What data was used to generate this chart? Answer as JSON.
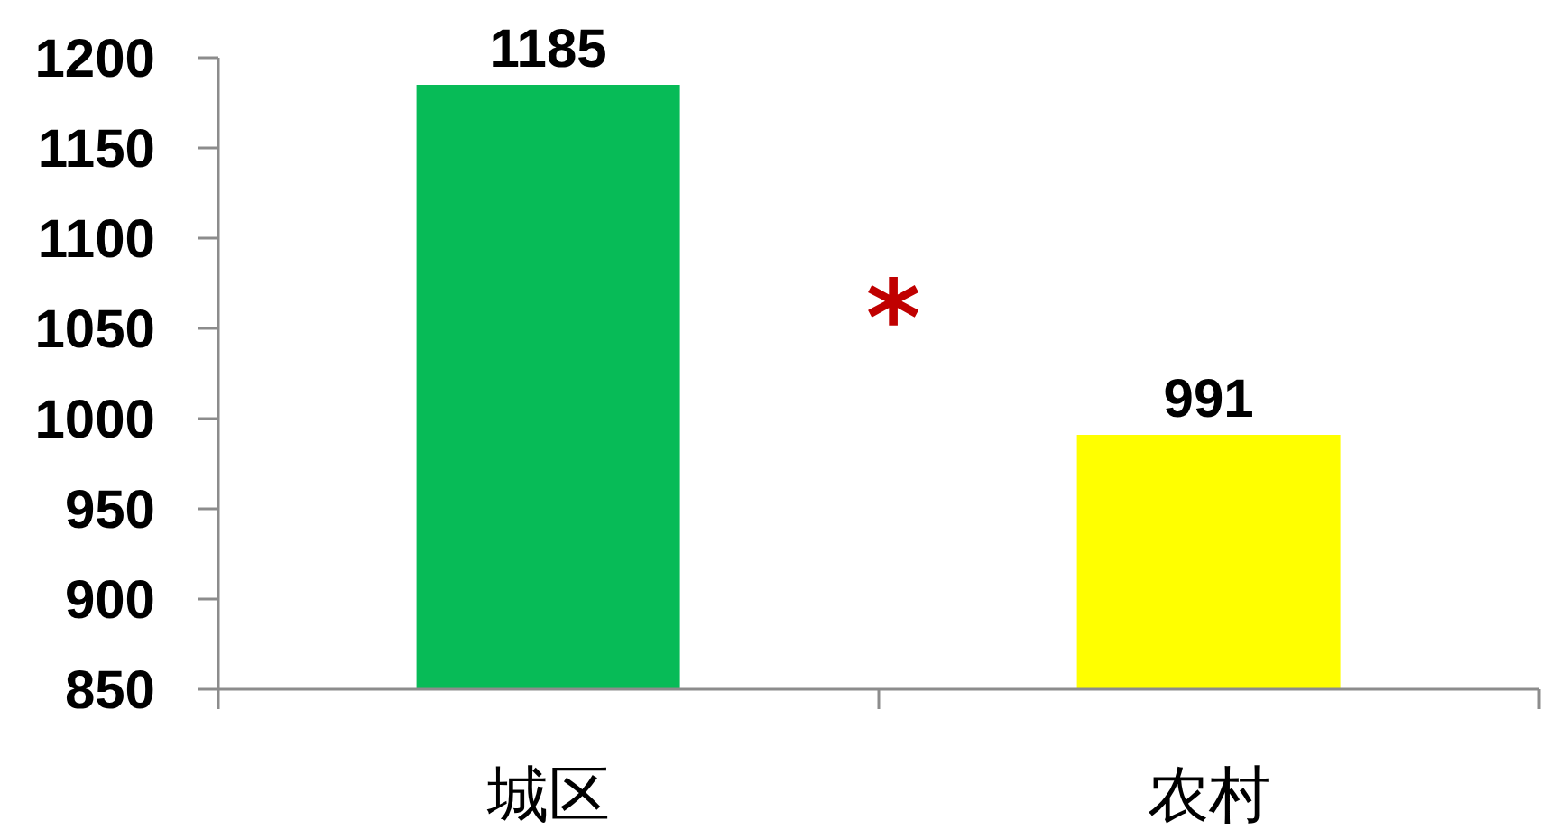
{
  "chart_data": {
    "type": "bar",
    "categories": [
      "城区",
      "农村"
    ],
    "values": [
      1185,
      991
    ],
    "colors": [
      "#07bb57",
      "#ffff00"
    ],
    "ylim": [
      850,
      1200
    ],
    "yticks": [
      850,
      900,
      950,
      1000,
      1050,
      1100,
      1150,
      1200
    ],
    "data_labels": true,
    "annotations": [
      "*"
    ]
  }
}
